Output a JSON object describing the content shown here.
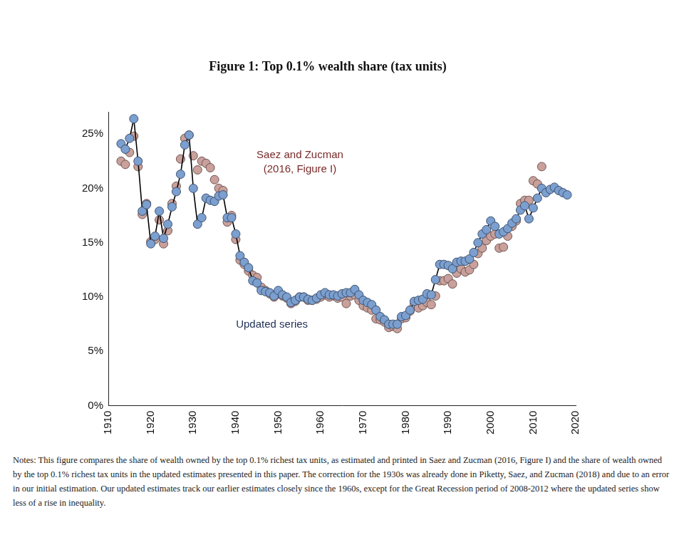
{
  "chart_data": {
    "type": "line",
    "title": "Figure 1: Top 0.1% wealth share (tax units)",
    "notes": "Notes: This figure compares the share of wealth owned by the top 0.1% richest tax units, as estimated and printed in Saez and Zucman (2016, Figure I) and the share of wealth owned by the top 0.1% richest tax units in the updated estimates presented in this paper. The correction for the 1930s was already done in Piketty, Saez, and Zucman (2018) and due to an error in our initial estimation. Our updated estimates track our earlier estimates closely since the 1960s, except for the Great Recession period of 2008-2012 where the updated series show less of a rise in inequality.",
    "x": [
      1913,
      1914,
      1915,
      1916,
      1917,
      1918,
      1919,
      1920,
      1921,
      1922,
      1923,
      1924,
      1925,
      1926,
      1927,
      1928,
      1929,
      1930,
      1931,
      1932,
      1933,
      1934,
      1935,
      1936,
      1937,
      1938,
      1939,
      1940,
      1941,
      1942,
      1943,
      1944,
      1945,
      1946,
      1947,
      1948,
      1949,
      1950,
      1951,
      1952,
      1953,
      1954,
      1955,
      1956,
      1957,
      1958,
      1959,
      1960,
      1961,
      1962,
      1963,
      1964,
      1965,
      1966,
      1967,
      1968,
      1969,
      1970,
      1971,
      1972,
      1973,
      1974,
      1975,
      1976,
      1977,
      1978,
      1979,
      1980,
      1981,
      1982,
      1983,
      1984,
      1985,
      1986,
      1987,
      1988,
      1989,
      1990,
      1991,
      1992,
      1993,
      1994,
      1995,
      1996,
      1997,
      1998,
      1999,
      2000,
      2001,
      2002,
      2003,
      2004,
      2005,
      2006,
      2007,
      2008,
      2009,
      2010,
      2011,
      2012,
      2013,
      2014,
      2015,
      2016,
      2017,
      2018
    ],
    "series": [
      {
        "name": "Updated series",
        "color": "#7b9fcf",
        "marker": "circle",
        "line_style": "solid",
        "values": [
          24.1,
          23.6,
          24.6,
          26.4,
          22.5,
          17.9,
          18.5,
          14.9,
          15.6,
          17.9,
          15.4,
          16.7,
          18.3,
          19.7,
          21.3,
          24.0,
          24.9,
          20.0,
          16.7,
          17.3,
          19.1,
          18.9,
          18.8,
          19.3,
          19.4,
          17.3,
          17.3,
          15.8,
          13.8,
          13.2,
          12.7,
          11.5,
          11.3,
          10.6,
          10.5,
          10.4,
          10.1,
          10.6,
          10.2,
          10.0,
          9.5,
          9.7,
          10.0,
          10.0,
          9.8,
          9.7,
          9.9,
          10.2,
          10.4,
          10.2,
          10.2,
          10.1,
          10.3,
          10.4,
          10.4,
          10.7,
          10.2,
          9.7,
          9.5,
          9.3,
          8.8,
          8.2,
          7.9,
          7.5,
          7.5,
          7.5,
          8.2,
          8.3,
          8.8,
          9.6,
          9.7,
          9.8,
          10.3,
          10.2,
          11.6,
          13.0,
          13.0,
          12.9,
          12.6,
          13.2,
          13.3,
          13.3,
          13.5,
          14.1,
          15.0,
          15.8,
          16.2,
          17.0,
          16.5,
          15.8,
          16.0,
          16.3,
          16.8,
          17.2,
          18.0,
          18.4,
          17.2,
          18.2,
          19.1,
          20.0,
          19.6,
          19.9,
          20.1,
          19.8,
          19.6,
          19.4
        ]
      },
      {
        "name": "Saez and Zucman (2016, Figure I)",
        "color": "#c9a09b",
        "marker": "circle",
        "line_style": "none",
        "values": [
          22.5,
          22.2,
          23.3,
          24.8,
          22.0,
          17.6,
          18.6,
          15.1,
          15.3,
          17.1,
          14.9,
          16.1,
          18.6,
          20.2,
          22.7,
          24.6,
          24.9,
          23.0,
          21.7,
          22.5,
          22.3,
          21.9,
          20.8,
          20.0,
          19.8,
          16.9,
          17.5,
          15.3,
          13.4,
          13.0,
          12.4,
          12.0,
          11.8,
          10.9,
          10.6,
          10.3,
          10.0,
          10.3,
          10.1,
          9.9,
          9.4,
          9.6,
          10.0,
          10.0,
          9.7,
          9.7,
          9.8,
          10.0,
          10.2,
          10.0,
          10.1,
          9.9,
          10.0,
          9.4,
          10.1,
          10.2,
          9.7,
          9.2,
          9.0,
          8.8,
          8.0,
          7.9,
          7.7,
          7.2,
          7.3,
          7.1,
          8.0,
          8.1,
          8.7,
          9.3,
          9.0,
          9.2,
          9.5,
          9.3,
          10.1,
          11.5,
          11.5,
          11.7,
          11.2,
          12.2,
          12.6,
          12.3,
          12.5,
          13.0,
          14.0,
          14.5,
          15.2,
          15.6,
          15.8,
          14.5,
          14.6,
          15.6,
          16.5,
          17.0,
          18.6,
          18.9,
          18.9,
          20.7,
          20.4,
          22.0,
          null,
          null,
          null,
          null,
          null,
          null
        ]
      }
    ],
    "xlim": [
      1910,
      2020
    ],
    "xticks": [
      1910,
      1920,
      1930,
      1940,
      1950,
      1960,
      1970,
      1980,
      1990,
      2000,
      2010,
      2020
    ],
    "ylim": [
      0,
      27
    ],
    "yticks": [
      {
        "value": 0,
        "label": "0%"
      },
      {
        "value": 5,
        "label": "5%"
      },
      {
        "value": 10,
        "label": "10%"
      },
      {
        "value": 15,
        "label": "15%"
      },
      {
        "value": 20,
        "label": "20%"
      },
      {
        "value": 25,
        "label": "25%"
      }
    ],
    "grid": false
  }
}
